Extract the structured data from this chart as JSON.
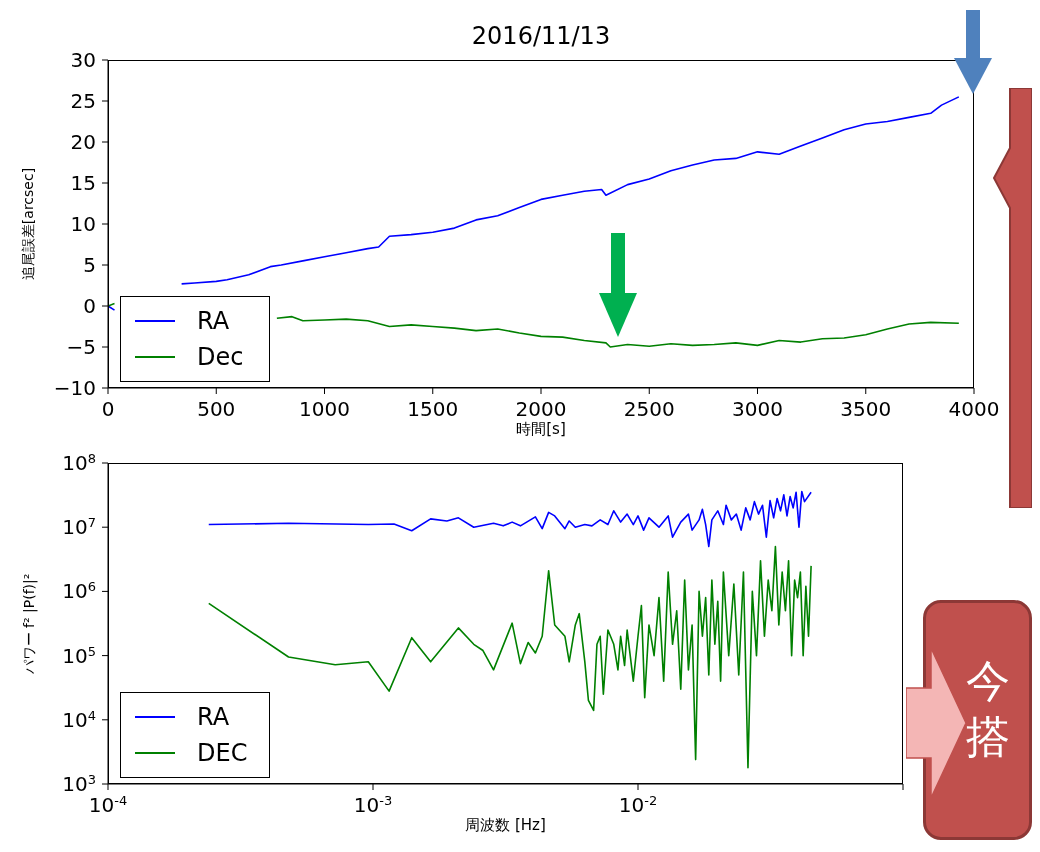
{
  "chart_data": [
    {
      "type": "line",
      "title": "2016/11/13",
      "xlabel": "時間[s]",
      "ylabel": "追尾誤差[arcsec]",
      "xlim": [
        0,
        4000
      ],
      "xticks": [
        0,
        500,
        1000,
        1500,
        2000,
        2500,
        3000,
        3500,
        4000
      ],
      "ylim": [
        -10,
        30
      ],
      "yticks": [
        {
          "value": -10,
          "label": "−10"
        },
        {
          "value": -5,
          "label": "−5"
        },
        0,
        5,
        10,
        15,
        20,
        25,
        30
      ],
      "legend": "bottom left",
      "series": [
        {
          "name": "RA",
          "color": "#0000ff",
          "x": [
            0,
            30,
            60,
            340,
            400,
            500,
            550,
            650,
            750,
            800,
            900,
            1000,
            1100,
            1200,
            1250,
            1300,
            1400,
            1500,
            1600,
            1700,
            1800,
            1900,
            2000,
            2100,
            2200,
            2280,
            2300,
            2400,
            2500,
            2600,
            2700,
            2800,
            2900,
            3000,
            3100,
            3200,
            3300,
            3400,
            3500,
            3600,
            3700,
            3800,
            3850,
            3930
          ],
          "values": [
            0,
            -0.5,
            null,
            2.7,
            2.8,
            3,
            3.2,
            3.8,
            4.8,
            5,
            5.5,
            6,
            6.5,
            7,
            7.2,
            8.5,
            8.7,
            9,
            9.5,
            10.5,
            11,
            12,
            13,
            13.5,
            14,
            14.2,
            13.5,
            14.8,
            15.5,
            16.5,
            17.2,
            17.8,
            18,
            18.8,
            18.5,
            19.5,
            20.5,
            21.5,
            22.2,
            22.5,
            23,
            23.5,
            24.5,
            25.5
          ]
        },
        {
          "name": "Dec",
          "color": "#008000",
          "x": [
            0,
            30,
            60,
            780,
            850,
            900,
            1000,
            1100,
            1200,
            1300,
            1400,
            1500,
            1600,
            1700,
            1800,
            1900,
            2000,
            2100,
            2200,
            2300,
            2320,
            2400,
            2500,
            2600,
            2700,
            2800,
            2900,
            3000,
            3100,
            3200,
            3300,
            3400,
            3500,
            3600,
            3700,
            3800,
            3930
          ],
          "values": [
            0,
            0.3,
            null,
            -1.5,
            -1.3,
            -1.8,
            -1.7,
            -1.6,
            -1.8,
            -2.5,
            -2.3,
            -2.5,
            -2.7,
            -3.0,
            -2.8,
            -3.3,
            -3.7,
            -3.8,
            -4.2,
            -4.5,
            -5.0,
            -4.7,
            -4.9,
            -4.6,
            -4.8,
            -4.7,
            -4.5,
            -4.8,
            -4.2,
            -4.4,
            -4.0,
            -3.9,
            -3.5,
            -2.8,
            -2.2,
            -2.0,
            -2.1
          ]
        }
      ]
    },
    {
      "type": "line",
      "xlabel": "周波数 [Hz]",
      "ylabel": "パワー f² |P(f)|²",
      "log": "xy",
      "xlim": [
        0.0001,
        0.1
      ],
      "xticks": [
        {
          "value": 0.0001,
          "label": "10$^{-4}$"
        },
        {
          "value": 0.001,
          "label": "10$^{-3}$"
        },
        {
          "value": 0.01,
          "label": "10$^{-2}$"
        },
        {
          "value": 0.1,
          "label": null
        }
      ],
      "ylim": [
        1000,
        100000000
      ],
      "yticks": [
        {
          "value": 1000,
          "label": "10$^{3}$"
        },
        {
          "value": 10000,
          "label": "10$^{4}$"
        },
        {
          "value": 100000,
          "label": "10$^{5}$"
        },
        {
          "value": 1000000,
          "label": "10$^{6}$"
        },
        {
          "value": 10000000,
          "label": "10$^{7}$"
        },
        {
          "value": 100000000,
          "label": "10$^{8}$"
        }
      ],
      "legend": "bottom left",
      "annotations": [
        "今",
        "搭"
      ],
      "series": [
        {
          "name": "RA",
          "color": "#0000ff",
          "x": [
            0.00024,
            0.00048,
            0.00096,
            0.0012,
            0.0014,
            0.00165,
            0.0019,
            0.0021,
            0.0024,
            0.00285,
            0.0031,
            0.00335,
            0.0036,
            0.0041,
            0.00435,
            0.0046,
            0.00485,
            0.0053,
            0.0055,
            0.0058,
            0.0063,
            0.0067,
            0.0072,
            0.0077,
            0.0081,
            0.0086,
            0.0091,
            0.0096,
            0.01,
            0.0105,
            0.011,
            0.012,
            0.013,
            0.0135,
            0.0145,
            0.0155,
            0.016,
            0.017,
            0.0175,
            0.018,
            0.0185,
            0.019,
            0.02,
            0.021,
            0.0215,
            0.0225,
            0.0235,
            0.0245,
            0.0255,
            0.0265,
            0.0275,
            0.0285,
            0.0295,
            0.0305,
            0.0315,
            0.0325,
            0.0335,
            0.0345,
            0.0355,
            0.0365,
            0.0375,
            0.0385,
            0.0395,
            0.0405,
            0.0415,
            0.0425,
            0.045
          ],
          "values": [
            11000000,
            11500000,
            11000000,
            11200000,
            8800000,
            13500000,
            12500000,
            14000000,
            10000000,
            11500000,
            10500000,
            12000000,
            10500000,
            14500000,
            9500000,
            17000000,
            15000000,
            9500000,
            12500000,
            10000000,
            11000000,
            10500000,
            13000000,
            11000000,
            18000000,
            12000000,
            16000000,
            11000000,
            15000000,
            9000000,
            14000000,
            10000000,
            15000000,
            7000000,
            12000000,
            16000000,
            9000000,
            13000000,
            19000000,
            11000000,
            5000000,
            13000000,
            18000000,
            11000000,
            22000000,
            13000000,
            16000000,
            9000000,
            20000000,
            13000000,
            25000000,
            16000000,
            22000000,
            7000000,
            26000000,
            14000000,
            28000000,
            18000000,
            32000000,
            15000000,
            30000000,
            20000000,
            35000000,
            10000000,
            36000000,
            25000000,
            35000000
          ]
        },
        {
          "name": "DEC",
          "color": "#008000",
          "x": [
            0.00024,
            0.00048,
            0.00072,
            0.00096,
            0.00115,
            0.0014,
            0.00165,
            0.0021,
            0.0024,
            0.0026,
            0.00285,
            0.00335,
            0.0036,
            0.00385,
            0.0041,
            0.00435,
            0.0046,
            0.00485,
            0.0053,
            0.0055,
            0.0058,
            0.006,
            0.0063,
            0.0065,
            0.0068,
            0.007,
            0.0072,
            0.0074,
            0.0077,
            0.0081,
            0.0084,
            0.0086,
            0.0089,
            0.0091,
            0.0096,
            0.01,
            0.0103,
            0.0106,
            0.011,
            0.0115,
            0.012,
            0.0125,
            0.013,
            0.0135,
            0.014,
            0.0145,
            0.015,
            0.0155,
            0.016,
            0.0165,
            0.017,
            0.0175,
            0.018,
            0.0185,
            0.019,
            0.0195,
            0.02,
            0.0205,
            0.021,
            0.022,
            0.023,
            0.024,
            0.025,
            0.026,
            0.027,
            0.028,
            0.029,
            0.03,
            0.031,
            0.032,
            0.033,
            0.034,
            0.035,
            0.036,
            0.037,
            0.038,
            0.039,
            0.04,
            0.041,
            0.042,
            0.043,
            0.044,
            0.045
          ],
          "values": [
            650000,
            95000,
            72000,
            80000,
            28000,
            190000,
            80000,
            270000,
            150000,
            120000,
            60000,
            320000,
            75000,
            160000,
            110000,
            200000,
            2100000,
            300000,
            200000,
            80000,
            300000,
            450000,
            80000,
            20000,
            14000,
            150000,
            200000,
            25000,
            250000,
            150000,
            60000,
            200000,
            70000,
            250000,
            40000,
            200000,
            600000,
            22000,
            300000,
            100000,
            800000,
            40000,
            2000000,
            150000,
            500000,
            30000,
            1500000,
            60000,
            300000,
            2400,
            1000000,
            200000,
            800000,
            50000,
            1500000,
            150000,
            700000,
            40000,
            2000000,
            100000,
            1300000,
            50000,
            2000000,
            1800,
            1000000,
            100000,
            3000000,
            200000,
            1500000,
            500000,
            5000000,
            300000,
            2000000,
            500000,
            3000000,
            100000,
            1500000,
            800000,
            2000000,
            100000,
            1200000,
            200000,
            2500000
          ]
        }
      ]
    }
  ]
}
